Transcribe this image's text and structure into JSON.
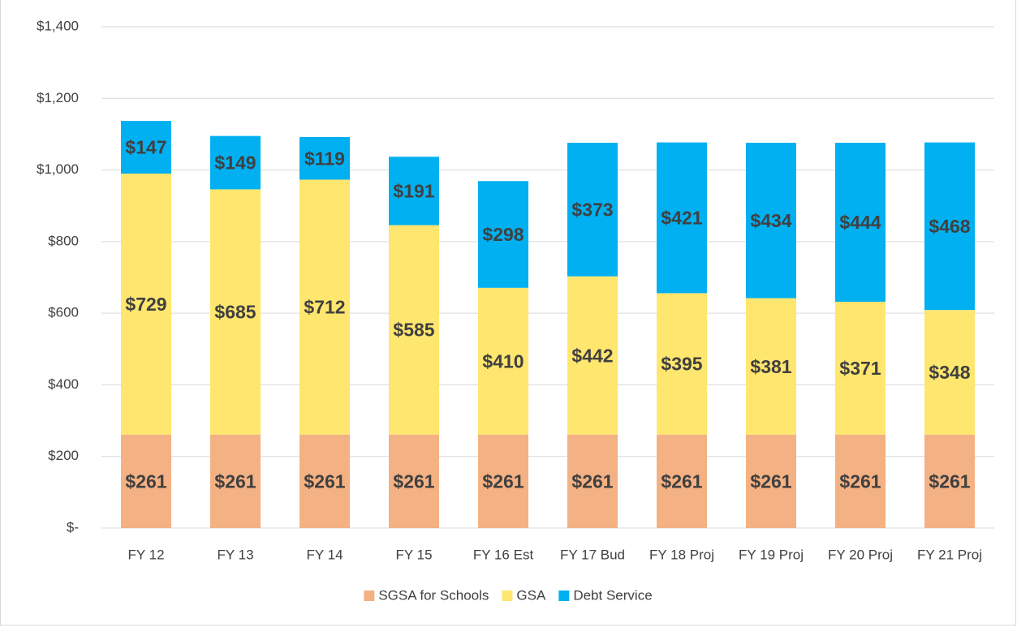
{
  "chart_data": {
    "type": "stacked-bar",
    "categories": [
      "FY 12",
      "FY 13",
      "FY 14",
      "FY 15",
      "FY 16 Est",
      "FY 17 Bud",
      "FY 18 Proj",
      "FY 19 Proj",
      "FY 20 Proj",
      "FY 21 Proj"
    ],
    "series": [
      {
        "name": "SGSA for Schools",
        "color": "#f4b183",
        "values": [
          261,
          261,
          261,
          261,
          261,
          261,
          261,
          261,
          261,
          261
        ],
        "value_labels": [
          "$261",
          "$261",
          "$261",
          "$261",
          "$261",
          "$261",
          "$261",
          "$261",
          "$261",
          "$261"
        ]
      },
      {
        "name": "GSA",
        "color": "#ffe66f",
        "values": [
          729,
          685,
          712,
          585,
          410,
          442,
          395,
          381,
          371,
          348
        ],
        "value_labels": [
          "$729",
          "$685",
          "$712",
          "$585",
          "$410",
          "$442",
          "$395",
          "$381",
          "$371",
          "$348"
        ]
      },
      {
        "name": "Debt Service",
        "color": "#00b0f0",
        "values": [
          147,
          149,
          119,
          191,
          298,
          373,
          421,
          434,
          444,
          468
        ],
        "value_labels": [
          "$147",
          "$149",
          "$119",
          "$191",
          "$298",
          "$373",
          "$421",
          "$434",
          "$444",
          "$468"
        ]
      }
    ],
    "ylim": [
      0,
      1400
    ],
    "yticks": [
      {
        "value": 0,
        "label": "$-"
      },
      {
        "value": 200,
        "label": "$200"
      },
      {
        "value": 400,
        "label": "$400"
      },
      {
        "value": 600,
        "label": "$600"
      },
      {
        "value": 800,
        "label": "$800"
      },
      {
        "value": 1000,
        "label": "$1,000"
      },
      {
        "value": 1200,
        "label": "$1,200"
      },
      {
        "value": 1400,
        "label": "$1,400"
      }
    ],
    "grid": true,
    "legend": "bottom"
  }
}
